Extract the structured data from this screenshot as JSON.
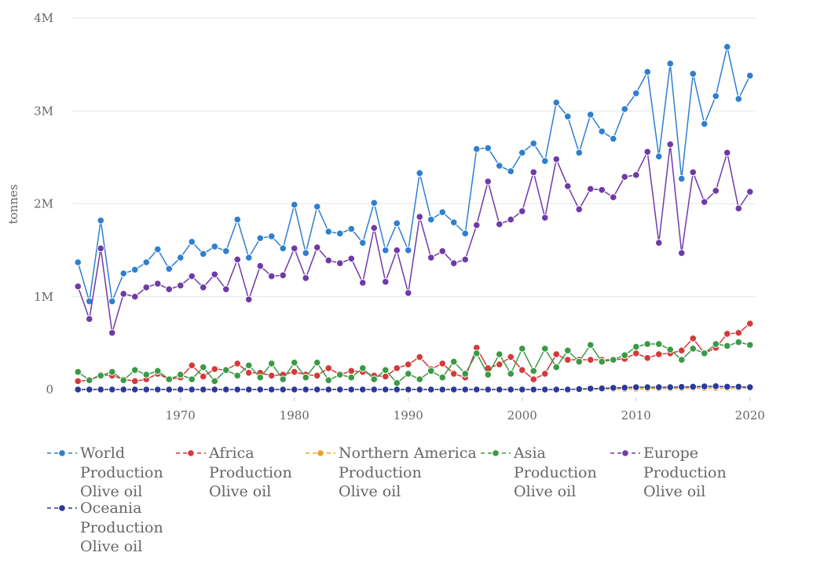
{
  "chart_data": {
    "type": "line",
    "title": "",
    "xlabel": "",
    "ylabel": "tonnes",
    "xlim": [
      1961,
      2020
    ],
    "ylim": [
      0,
      4000000
    ],
    "x_ticks": [
      1970,
      1980,
      1990,
      2000,
      2010,
      2020
    ],
    "x_tick_labels": [
      "1970",
      "1980",
      "1990",
      "2000",
      "2010",
      "2020"
    ],
    "y_ticks": [
      0,
      1000000,
      2000000,
      3000000,
      4000000
    ],
    "y_tick_labels": [
      "0",
      "1M",
      "2M",
      "3M",
      "4M"
    ],
    "grid": "horizontal",
    "legend_position": "bottom",
    "x": [
      1961,
      1962,
      1963,
      1964,
      1965,
      1966,
      1967,
      1968,
      1969,
      1970,
      1971,
      1972,
      1973,
      1974,
      1975,
      1976,
      1977,
      1978,
      1979,
      1980,
      1981,
      1982,
      1983,
      1984,
      1985,
      1986,
      1987,
      1988,
      1989,
      1990,
      1991,
      1992,
      1993,
      1994,
      1995,
      1996,
      1997,
      1998,
      1999,
      2000,
      2001,
      2002,
      2003,
      2004,
      2005,
      2006,
      2007,
      2008,
      2009,
      2010,
      2011,
      2012,
      2013,
      2014,
      2015,
      2016,
      2017,
      2018,
      2019,
      2020
    ],
    "series": [
      {
        "name": "World Production Olive oil",
        "color": "#2f7fd0",
        "values": [
          1370000,
          950000,
          1820000,
          950000,
          1250000,
          1290000,
          1370000,
          1510000,
          1300000,
          1420000,
          1590000,
          1460000,
          1540000,
          1490000,
          1830000,
          1420000,
          1630000,
          1650000,
          1520000,
          1990000,
          1470000,
          1970000,
          1700000,
          1680000,
          1730000,
          1580000,
          2010000,
          1500000,
          1790000,
          1500000,
          2330000,
          1830000,
          1910000,
          1800000,
          1680000,
          2590000,
          2600000,
          2410000,
          2350000,
          2550000,
          2650000,
          2460000,
          3090000,
          2940000,
          2550000,
          2960000,
          2780000,
          2700000,
          3020000,
          3190000,
          3420000,
          2510000,
          3510000,
          2270000,
          3400000,
          2860000,
          3160000,
          3690000,
          3130000,
          3380000
        ]
      },
      {
        "name": "Africa Production Olive oil",
        "color": "#d43a3a",
        "values": [
          90000,
          100000,
          160000,
          150000,
          110000,
          90000,
          110000,
          170000,
          110000,
          130000,
          260000,
          140000,
          220000,
          210000,
          280000,
          180000,
          180000,
          150000,
          160000,
          190000,
          160000,
          150000,
          230000,
          160000,
          200000,
          190000,
          150000,
          140000,
          230000,
          270000,
          350000,
          220000,
          280000,
          170000,
          130000,
          450000,
          230000,
          270000,
          350000,
          210000,
          110000,
          170000,
          380000,
          320000,
          320000,
          320000,
          320000,
          320000,
          330000,
          390000,
          340000,
          380000,
          390000,
          420000,
          550000,
          390000,
          450000,
          600000,
          610000,
          710000
        ]
      },
      {
        "name": "Northern America Production Olive oil",
        "color": "#f0a028",
        "values": [
          2000,
          2000,
          2000,
          2000,
          2000,
          2000,
          2000,
          2000,
          2000,
          2000,
          2000,
          2000,
          2000,
          2000,
          2000,
          2000,
          2000,
          2000,
          2000,
          2000,
          2000,
          2000,
          2000,
          2000,
          2000,
          2000,
          2000,
          2000,
          2000,
          2000,
          2000,
          2000,
          2000,
          2000,
          2000,
          2000,
          2000,
          2000,
          2000,
          2000,
          2000,
          2000,
          2000,
          2000,
          2000,
          2000,
          2000,
          5000,
          5000,
          8000,
          10000,
          12000,
          12000,
          14000,
          16000,
          16000,
          16000,
          16000,
          16000,
          16000
        ]
      },
      {
        "name": "Asia Production Olive oil",
        "color": "#3a9a45",
        "values": [
          190000,
          100000,
          150000,
          190000,
          100000,
          210000,
          160000,
          200000,
          110000,
          160000,
          110000,
          240000,
          90000,
          210000,
          150000,
          260000,
          130000,
          280000,
          110000,
          290000,
          130000,
          290000,
          100000,
          160000,
          130000,
          230000,
          110000,
          210000,
          70000,
          170000,
          110000,
          200000,
          130000,
          300000,
          170000,
          390000,
          160000,
          380000,
          170000,
          440000,
          200000,
          440000,
          240000,
          420000,
          300000,
          480000,
          300000,
          320000,
          370000,
          460000,
          490000,
          490000,
          430000,
          320000,
          440000,
          390000,
          490000,
          470000,
          510000,
          480000
        ]
      },
      {
        "name": "Europe Production Olive oil",
        "color": "#6f3aa8",
        "values": [
          1110000,
          760000,
          1520000,
          610000,
          1030000,
          1000000,
          1100000,
          1140000,
          1080000,
          1120000,
          1220000,
          1100000,
          1240000,
          1080000,
          1400000,
          970000,
          1330000,
          1220000,
          1230000,
          1520000,
          1200000,
          1530000,
          1390000,
          1360000,
          1410000,
          1150000,
          1740000,
          1160000,
          1500000,
          1040000,
          1860000,
          1420000,
          1490000,
          1360000,
          1400000,
          1770000,
          2240000,
          1780000,
          1830000,
          1920000,
          2340000,
          1850000,
          2480000,
          2190000,
          1940000,
          2160000,
          2150000,
          2070000,
          2290000,
          2310000,
          2560000,
          1580000,
          2640000,
          1470000,
          2340000,
          2020000,
          2140000,
          2550000,
          1950000,
          2130000
        ]
      },
      {
        "name": "Oceania Production Olive oil",
        "color": "#2a3a9a",
        "values": [
          0,
          0,
          0,
          0,
          0,
          0,
          0,
          0,
          0,
          0,
          0,
          0,
          0,
          0,
          0,
          0,
          0,
          0,
          0,
          0,
          0,
          0,
          0,
          0,
          0,
          0,
          0,
          0,
          0,
          0,
          0,
          0,
          0,
          0,
          0,
          0,
          0,
          0,
          0,
          0,
          0,
          0,
          0,
          0,
          5000,
          10000,
          12000,
          18000,
          20000,
          25000,
          25000,
          25000,
          25000,
          28000,
          30000,
          33000,
          35000,
          30000,
          30000,
          25000
        ]
      }
    ]
  },
  "legend": {
    "items": [
      {
        "lines": [
          "World",
          "Production",
          "Olive oil"
        ],
        "color": "#2f7fd0"
      },
      {
        "lines": [
          "Africa",
          "Production",
          "Olive oil"
        ],
        "color": "#d43a3a"
      },
      {
        "lines": [
          "Northern America",
          "Production",
          "Olive oil"
        ],
        "color": "#f0a028"
      },
      {
        "lines": [
          "Asia",
          "Production",
          "Olive oil"
        ],
        "color": "#3a9a45"
      },
      {
        "lines": [
          "Europe",
          "Production",
          "Olive oil"
        ],
        "color": "#6f3aa8"
      },
      {
        "lines": [
          "Oceania",
          "Production",
          "Olive oil"
        ],
        "color": "#2a3a9a"
      }
    ]
  }
}
